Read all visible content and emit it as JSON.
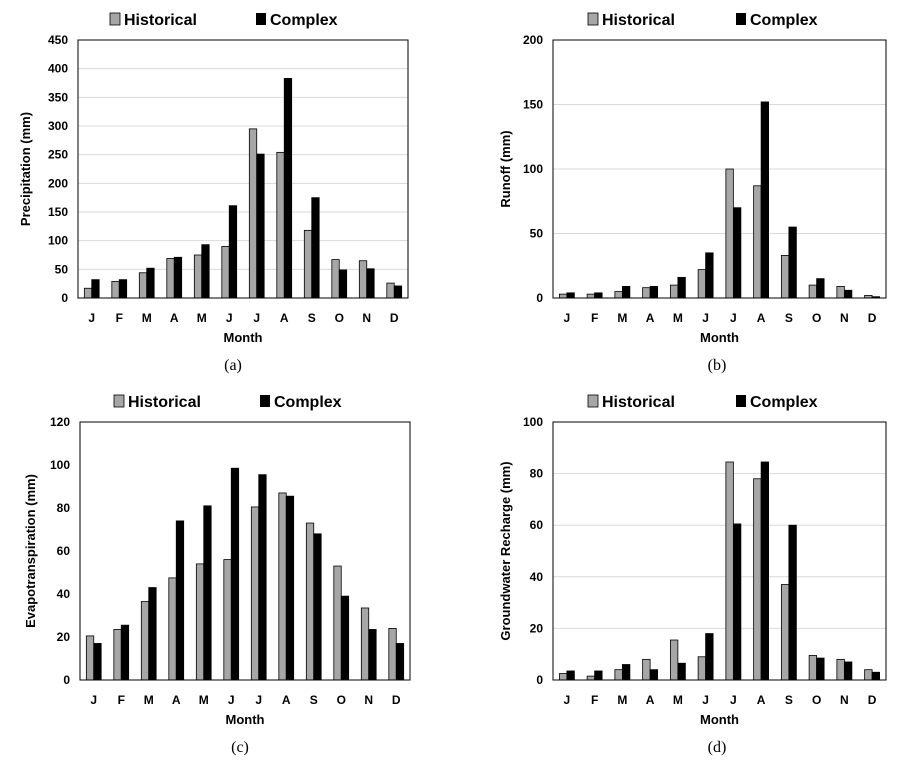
{
  "legend": {
    "historical": "Historical",
    "complex": "Complex"
  },
  "colors": {
    "historical": "#a6a6a6",
    "complex": "#000000",
    "grid": "#d9d9d9",
    "frame": "#000000"
  },
  "chart_data": [
    {
      "type": "bar",
      "caption": "(a)",
      "xlabel": "Month",
      "ylabel": "Precipitation (mm)",
      "ylim": [
        0,
        450
      ],
      "yticks": [
        0,
        50,
        100,
        150,
        200,
        250,
        300,
        350,
        400,
        450
      ],
      "grid": true,
      "legend_position": "top",
      "categories": [
        "J",
        "F",
        "M",
        "A",
        "M",
        "J",
        "J",
        "A",
        "S",
        "O",
        "N",
        "D"
      ],
      "series": [
        {
          "name": "Historical",
          "values": [
            17,
            29,
            44,
            69,
            75,
            90,
            295,
            254,
            118,
            67,
            65,
            26
          ]
        },
        {
          "name": "Complex",
          "values": [
            32,
            32,
            52,
            71,
            93,
            161,
            251,
            383,
            175,
            49,
            51,
            21
          ]
        }
      ]
    },
    {
      "type": "bar",
      "caption": "(b)",
      "xlabel": "Month",
      "ylabel": "Runoff (mm)",
      "ylim": [
        0,
        200
      ],
      "yticks": [
        0,
        50,
        100,
        150,
        200
      ],
      "grid": true,
      "legend_position": "top",
      "categories": [
        "J",
        "F",
        "M",
        "A",
        "M",
        "J",
        "J",
        "A",
        "S",
        "O",
        "N",
        "D"
      ],
      "series": [
        {
          "name": "Historical",
          "values": [
            3,
            3,
            5,
            8,
            10,
            22,
            100,
            87,
            33,
            10,
            9,
            2
          ]
        },
        {
          "name": "Complex",
          "values": [
            4,
            4,
            9,
            9,
            16,
            35,
            70,
            152,
            55,
            15,
            6,
            1
          ]
        }
      ]
    },
    {
      "type": "bar",
      "caption": "(c)",
      "xlabel": "Month",
      "ylabel": "Evapotranspiration (mm)",
      "ylim": [
        0,
        120
      ],
      "yticks": [
        0,
        20,
        40,
        60,
        80,
        100,
        120
      ],
      "grid": false,
      "legend_position": "top",
      "categories": [
        "J",
        "F",
        "M",
        "A",
        "M",
        "J",
        "J",
        "A",
        "S",
        "O",
        "N",
        "D"
      ],
      "series": [
        {
          "name": "Historical",
          "values": [
            20.5,
            23.5,
            36.5,
            47.5,
            54,
            56,
            80.5,
            87,
            73,
            53,
            33.5,
            24
          ]
        },
        {
          "name": "Complex",
          "values": [
            17,
            25.5,
            43,
            74,
            81,
            98.5,
            95.5,
            85.5,
            68,
            39,
            23.5,
            17
          ]
        }
      ]
    },
    {
      "type": "bar",
      "caption": "(d)",
      "xlabel": "Month",
      "ylabel": "Groundwater Recharge (mm)",
      "ylim": [
        0,
        100
      ],
      "yticks": [
        0,
        20,
        40,
        60,
        80,
        100
      ],
      "grid": true,
      "legend_position": "top",
      "categories": [
        "J",
        "F",
        "M",
        "A",
        "M",
        "J",
        "J",
        "A",
        "S",
        "O",
        "N",
        "D"
      ],
      "series": [
        {
          "name": "Historical",
          "values": [
            2.5,
            1.5,
            4,
            8,
            15.5,
            9,
            84.5,
            78,
            37,
            9.5,
            8,
            4
          ]
        },
        {
          "name": "Complex",
          "values": [
            3.5,
            3.5,
            6,
            4,
            6.5,
            18,
            60.5,
            84.5,
            60,
            8.5,
            7,
            3
          ]
        }
      ]
    }
  ]
}
